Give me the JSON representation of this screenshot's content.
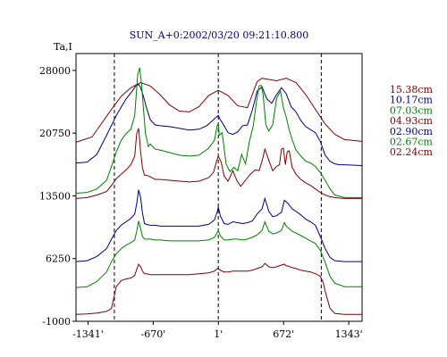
{
  "chart_data": {
    "type": "line",
    "title": "SUN_A+0:2002/03/20 09:21:10.800",
    "ylabel": "Ta,I",
    "xlabel": "",
    "xlim": [
      -1465,
      1480
    ],
    "ylim": [
      -1000,
      29950
    ],
    "y_ticks": [
      {
        "value": -1000,
        "label": "-1000"
      },
      {
        "value": 6250,
        "label": "6250"
      },
      {
        "value": 13500,
        "label": "13500"
      },
      {
        "value": 20750,
        "label": "20750"
      },
      {
        "value": 28000,
        "label": "28000"
      }
    ],
    "x_ticks": [
      {
        "value": -1341,
        "label": "-1341'"
      },
      {
        "value": -670,
        "label": "-670'"
      },
      {
        "value": 1,
        "label": "1'"
      },
      {
        "value": 672,
        "label": "672'"
      },
      {
        "value": 1343,
        "label": "1343'"
      }
    ],
    "vlines": [
      -1070,
      0,
      1060
    ],
    "grid": false,
    "legend_position": "right",
    "series": [
      {
        "name": "15.38cm",
        "color": "#800000",
        "x": [
          -1465,
          -1300,
          -1200,
          -1100,
          -1000,
          -900,
          -800,
          -700,
          -600,
          -500,
          -400,
          -300,
          -200,
          -100,
          0,
          100,
          200,
          300,
          350,
          400,
          450,
          500,
          600,
          700,
          800,
          900,
          1000,
          1100,
          1200,
          1300,
          1480
        ],
        "y": [
          19700,
          20300,
          21900,
          23500,
          25000,
          26000,
          26600,
          26200,
          25200,
          24000,
          23300,
          23200,
          23800,
          25100,
          25700,
          25100,
          23900,
          23700,
          25200,
          26700,
          27100,
          27000,
          26800,
          27100,
          26600,
          25200,
          23500,
          21800,
          20600,
          20000,
          19800
        ]
      },
      {
        "name": "10.17cm",
        "color": "#000080",
        "x": [
          -1465,
          -1350,
          -1250,
          -1150,
          -1050,
          -950,
          -880,
          -850,
          -820,
          -800,
          -770,
          -740,
          -700,
          -650,
          -600,
          -500,
          -400,
          -300,
          -200,
          -120,
          -60,
          0,
          20,
          50,
          100,
          150,
          200,
          250,
          300,
          350,
          400,
          450,
          500,
          550,
          600,
          650,
          700,
          750,
          800,
          850,
          900,
          1000,
          1050,
          1100,
          1150,
          1200,
          1250,
          1300,
          1480
        ],
        "y": [
          17300,
          17400,
          18300,
          20500,
          22800,
          24700,
          25700,
          26200,
          26400,
          26000,
          25000,
          23700,
          22300,
          21700,
          21600,
          21500,
          21300,
          21100,
          21200,
          21600,
          22200,
          22800,
          22300,
          21800,
          20800,
          20600,
          20900,
          21600,
          21700,
          23400,
          25600,
          26100,
          24700,
          24200,
          25200,
          26000,
          25300,
          23800,
          23200,
          22200,
          21500,
          20800,
          19800,
          18200,
          17500,
          17200,
          17100,
          17100,
          17000
        ]
      },
      {
        "name": "07.03cm",
        "color": "#008000",
        "x": [
          -1465,
          -1350,
          -1250,
          -1150,
          -1100,
          -1050,
          -1000,
          -950,
          -900,
          -860,
          -830,
          -810,
          -790,
          -770,
          -750,
          -720,
          -700,
          -650,
          -600,
          -500,
          -400,
          -300,
          -200,
          -100,
          -40,
          -10,
          0,
          10,
          40,
          80,
          120,
          160,
          200,
          240,
          280,
          320,
          360,
          390,
          420,
          440,
          460,
          490,
          520,
          560,
          600,
          640,
          670,
          700,
          730,
          760,
          800,
          850,
          900,
          950,
          1000,
          1050,
          1100,
          1150,
          1200,
          1300,
          1480
        ],
        "y": [
          13800,
          13900,
          14300,
          15300,
          16900,
          18600,
          19900,
          20700,
          21200,
          22800,
          27500,
          28300,
          26500,
          23500,
          20700,
          19200,
          19500,
          18900,
          18800,
          18500,
          18200,
          18100,
          18200,
          19000,
          19900,
          21700,
          21800,
          20500,
          20800,
          17200,
          16300,
          16800,
          16400,
          18300,
          17200,
          19800,
          21600,
          24200,
          26200,
          26300,
          25300,
          21700,
          21000,
          21700,
          24800,
          25600,
          23700,
          22600,
          21100,
          20000,
          18800,
          18100,
          17500,
          17300,
          16900,
          16200,
          15300,
          14300,
          13600,
          13300,
          13300
        ]
      },
      {
        "name": "04.93cm",
        "color": "#800000",
        "x": [
          -1465,
          -1350,
          -1250,
          -1150,
          -1100,
          -1050,
          -1000,
          -950,
          -900,
          -860,
          -840,
          -820,
          -800,
          -780,
          -760,
          -740,
          -700,
          -650,
          -600,
          -500,
          -400,
          -300,
          -200,
          -100,
          -50,
          -20,
          0,
          30,
          60,
          100,
          150,
          190,
          230,
          280,
          330,
          380,
          420,
          450,
          480,
          520,
          560,
          600,
          630,
          650,
          670,
          690,
          710,
          730,
          760,
          800,
          850,
          900,
          950,
          1000,
          1050,
          1100,
          1150,
          1200,
          1300,
          1480
        ],
        "y": [
          13200,
          13300,
          13600,
          14000,
          14700,
          15500,
          16000,
          16500,
          17100,
          18100,
          20700,
          21300,
          18600,
          16700,
          15900,
          15900,
          15700,
          15400,
          15400,
          15300,
          15200,
          15100,
          15200,
          15600,
          16200,
          17400,
          18100,
          17400,
          15800,
          15200,
          16400,
          15300,
          14600,
          15300,
          16000,
          16500,
          16400,
          17500,
          18900,
          17600,
          16400,
          16900,
          17100,
          18900,
          19000,
          17100,
          18600,
          18700,
          16800,
          16000,
          15400,
          15000,
          14700,
          14300,
          13900,
          13600,
          13400,
          13300,
          13200,
          13200
        ]
      },
      {
        "name": "02.90cm",
        "color": "#000080",
        "x": [
          -1465,
          -1350,
          -1250,
          -1150,
          -1100,
          -1050,
          -1000,
          -950,
          -900,
          -860,
          -840,
          -820,
          -800,
          -780,
          -760,
          -740,
          -700,
          -650,
          -600,
          -500,
          -400,
          -300,
          -200,
          -100,
          -40,
          -10,
          0,
          20,
          60,
          100,
          150,
          200,
          250,
          300,
          350,
          400,
          450,
          480,
          520,
          560,
          600,
          650,
          680,
          700,
          720,
          760,
          800,
          850,
          900,
          950,
          1000,
          1050,
          1100,
          1150,
          1200,
          1300,
          1480
        ],
        "y": [
          5900,
          6000,
          6500,
          7400,
          8500,
          9500,
          10100,
          10500,
          10900,
          11400,
          12600,
          14200,
          13300,
          11500,
          10300,
          10200,
          10100,
          10100,
          10000,
          10000,
          10000,
          10000,
          10000,
          10200,
          10700,
          11700,
          12200,
          11200,
          10300,
          10200,
          10500,
          10400,
          10300,
          10400,
          10600,
          11400,
          12000,
          13200,
          11700,
          11100,
          11200,
          11600,
          13000,
          12800,
          12600,
          12000,
          11700,
          11300,
          10800,
          10500,
          10100,
          8800,
          7400,
          6400,
          6000,
          5900,
          5900
        ]
      },
      {
        "name": "02.67cm",
        "color": "#008000",
        "x": [
          -1465,
          -1350,
          -1250,
          -1150,
          -1100,
          -1050,
          -1000,
          -950,
          -900,
          -860,
          -840,
          -820,
          -800,
          -780,
          -760,
          -740,
          -700,
          -650,
          -600,
          -500,
          -400,
          -300,
          -200,
          -100,
          -40,
          -10,
          0,
          20,
          60,
          100,
          150,
          200,
          250,
          300,
          350,
          400,
          450,
          480,
          520,
          560,
          600,
          650,
          680,
          700,
          720,
          760,
          800,
          850,
          900,
          950,
          1000,
          1050,
          1100,
          1150,
          1200,
          1300,
          1480
        ],
        "y": [
          2900,
          3000,
          3600,
          4700,
          5900,
          6800,
          7400,
          7800,
          8100,
          8400,
          9400,
          10600,
          9700,
          8800,
          8500,
          8500,
          8500,
          8400,
          8400,
          8300,
          8300,
          8300,
          8300,
          8400,
          8700,
          9300,
          9500,
          8900,
          8400,
          8400,
          8500,
          8500,
          8400,
          8500,
          8700,
          9000,
          9500,
          10500,
          9400,
          9100,
          9200,
          9500,
          10400,
          10000,
          9800,
          9400,
          9200,
          8900,
          8600,
          8300,
          8000,
          7200,
          5800,
          4200,
          3400,
          3000,
          3000
        ]
      },
      {
        "name": "02.24cm",
        "color": "#800000",
        "x": [
          -1465,
          -1350,
          -1250,
          -1150,
          -1100,
          -1050,
          -1000,
          -950,
          -900,
          -860,
          -840,
          -820,
          -800,
          -780,
          -760,
          -740,
          -700,
          -650,
          -600,
          -500,
          -400,
          -300,
          -200,
          -100,
          -40,
          -10,
          0,
          20,
          60,
          100,
          150,
          200,
          250,
          300,
          350,
          400,
          450,
          480,
          520,
          560,
          600,
          650,
          680,
          700,
          720,
          760,
          800,
          850,
          900,
          950,
          1000,
          1050,
          1080,
          1100,
          1150,
          1200,
          1300,
          1480
        ],
        "y": [
          -200,
          -150,
          -50,
          150,
          500,
          3000,
          3700,
          3900,
          4000,
          4300,
          5000,
          5600,
          5300,
          4800,
          4500,
          4500,
          4400,
          4400,
          4400,
          4400,
          4400,
          4400,
          4500,
          4600,
          4800,
          5100,
          5100,
          4900,
          4700,
          4700,
          4800,
          4800,
          4800,
          4800,
          4900,
          5100,
          5300,
          5700,
          5300,
          5200,
          5300,
          5500,
          5600,
          5400,
          5400,
          5200,
          5100,
          4900,
          4800,
          4700,
          4500,
          4200,
          3500,
          2500,
          500,
          -100,
          -200,
          -200
        ]
      }
    ]
  }
}
